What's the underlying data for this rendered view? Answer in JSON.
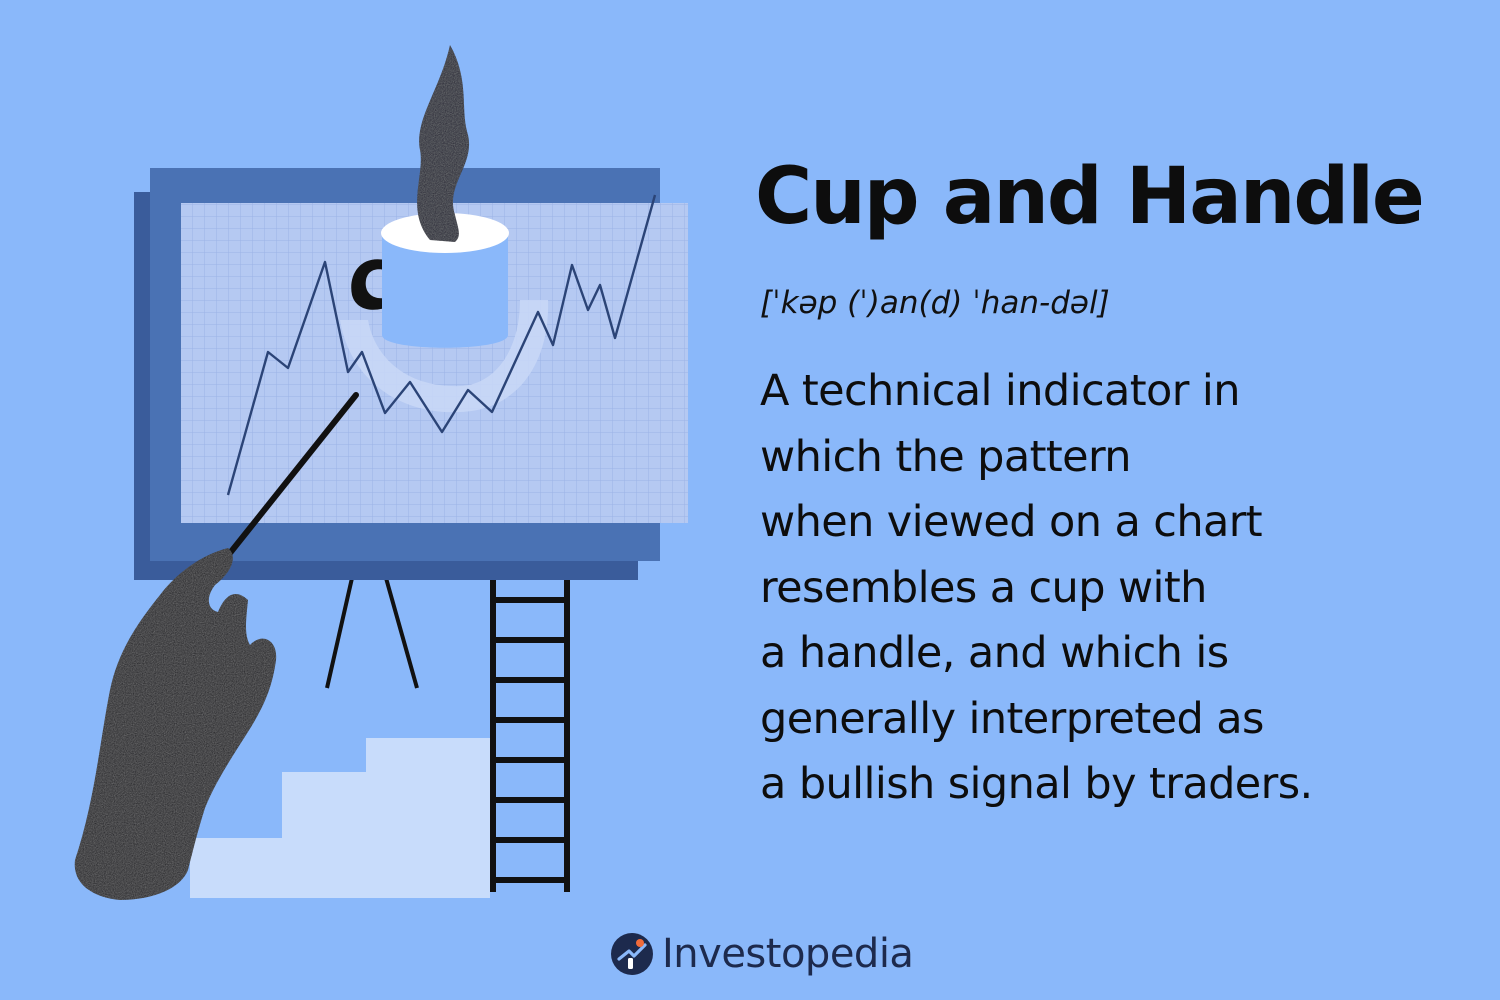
{
  "term": {
    "title": "Cup and Handle",
    "pronunciation": "[ˈkəp (ˈ)an(d) ˈhan-dəl]"
  },
  "definition": {
    "lines": [
      "A technical indicator in",
      "which the pattern",
      "when viewed on a chart",
      "resembles a cup with",
      "a handle, and which is",
      "generally interpreted as",
      "a bullish signal by traders."
    ]
  },
  "brand": {
    "name": "Investopedia",
    "logo_icon": "investopedia-logo-icon"
  },
  "colors": {
    "background": "#8ab8fa",
    "board_frame": "#4a72b4",
    "board_shadow": "#3a5c9b",
    "chart_panel": "#b5c9f2",
    "line": "#2b4477",
    "cup_body": "#8ab8fa",
    "text": "#0d0d0d",
    "brand_text": "#1d2a4d",
    "brand_orange": "#f26b3a",
    "stairs": "#c8dcfb"
  }
}
